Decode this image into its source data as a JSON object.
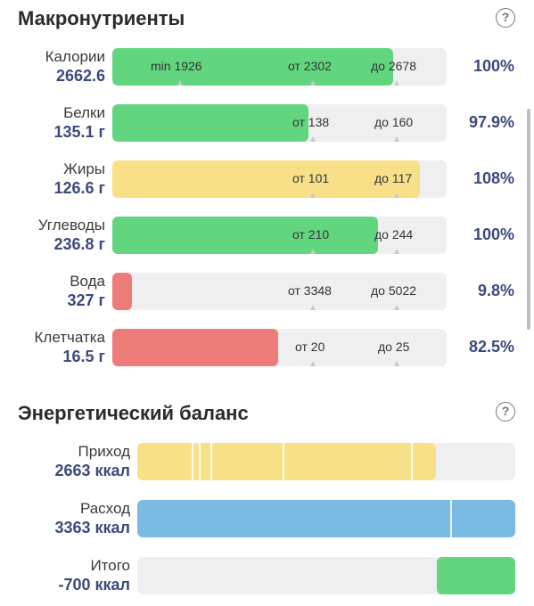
{
  "macro": {
    "title": "Макронутриенты",
    "help": "?",
    "rows": [
      {
        "name": "Калории",
        "value": "2662.6",
        "fill_pct": 0.84,
        "color": "#62d67f",
        "marks": [
          {
            "text": "min 1926"
          },
          {
            "text": "от 2302"
          },
          {
            "text": "до 2678"
          }
        ],
        "percent": "100%"
      },
      {
        "name": "Белки",
        "value": "135.1 г",
        "fill_pct": 0.59,
        "color": "#62d67f",
        "marks": [
          {
            "text": "от 138"
          },
          {
            "text": "до 160"
          }
        ],
        "percent": "97.9%"
      },
      {
        "name": "Жиры",
        "value": "126.6 г",
        "fill_pct": 0.92,
        "color": "#f8e089",
        "marks": [
          {
            "text": "от 101"
          },
          {
            "text": "до 117"
          }
        ],
        "percent": "108%"
      },
      {
        "name": "Углеводы",
        "value": "236.8 г",
        "fill_pct": 0.8,
        "color": "#62d67f",
        "marks": [
          {
            "text": "от 210"
          },
          {
            "text": "до 244"
          }
        ],
        "percent": "100%"
      },
      {
        "name": "Вода",
        "value": "327 г",
        "fill_pct": 0.06,
        "color": "#ed7b78",
        "marks": [
          {
            "text": "от 3348"
          },
          {
            "text": "до 5022"
          }
        ],
        "percent": "9.8%"
      },
      {
        "name": "Клетчатка",
        "value": "16.5 г",
        "fill_pct": 0.5,
        "color": "#ed7b78",
        "marks": [
          {
            "text": "от 20"
          },
          {
            "text": "до 25"
          }
        ],
        "percent": "82.5%"
      }
    ]
  },
  "energy": {
    "title": "Энергетический баланс",
    "help": "?",
    "rows": [
      {
        "name": "Приход",
        "value": "2663 ккал",
        "fill_pct": 0.79,
        "color": "#f8e089"
      },
      {
        "name": "Расход",
        "value": "3363 ккал",
        "fill_pct": 1.0,
        "color": "#7abbe4"
      },
      {
        "name": "Итого",
        "value": "-700 ккал",
        "fill_pct": 0.21,
        "color": "#62d67f",
        "align": "right"
      }
    ]
  }
}
